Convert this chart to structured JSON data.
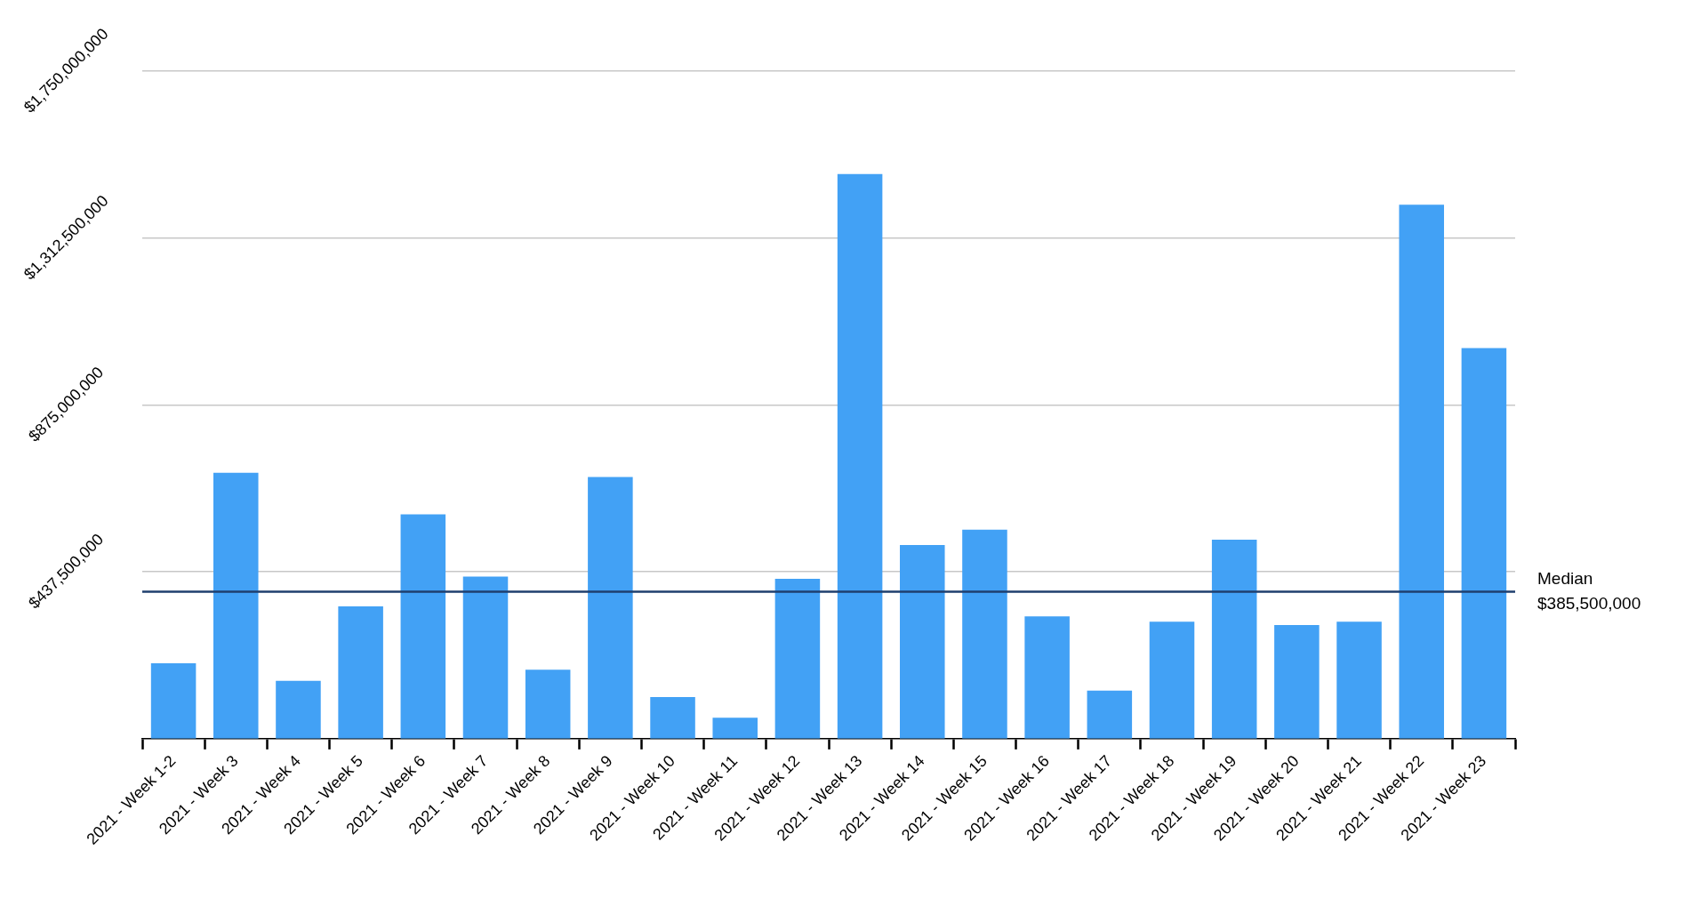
{
  "chart_data": {
    "type": "bar",
    "categories": [
      "2021 - Week 1-2",
      "2021 - Week 3",
      "2021 - Week 4",
      "2021 - Week 5",
      "2021 - Week 6",
      "2021 - Week 7",
      "2021 - Week 8",
      "2021 - Week 9",
      "2021 - Week 10",
      "2021 - Week 11",
      "2021 - Week 12",
      "2021 - Week 13",
      "2021 - Week 14",
      "2021 - Week 15",
      "2021 - Week 16",
      "2021 - Week 17",
      "2021 - Week 18",
      "2021 - Week 19",
      "2021 - Week 20",
      "2021 - Week 21",
      "2021 - Week 22",
      "2021 - Week 23"
    ],
    "values": [
      198000000,
      697000000,
      152000000,
      347000000,
      588000000,
      425000000,
      181000000,
      686000000,
      109000000,
      55000000,
      419000000,
      1480000000,
      508000000,
      548000000,
      321000000,
      126000000,
      307000000,
      522000000,
      298000000,
      307000000,
      1400000000,
      1024000000
    ],
    "color": "#42a1f5",
    "ylim": [
      0,
      1750000000
    ],
    "yticks": [
      {
        "value": 437500000,
        "label": "$437,500,000"
      },
      {
        "value": 875000000,
        "label": "$875,000,000"
      },
      {
        "value": 1312500000,
        "label": "$1,312,500,000"
      },
      {
        "value": 1750000000,
        "label": "$1,750,000,000"
      }
    ],
    "grid": "y",
    "ref_lines": [
      {
        "axis": "y",
        "value": 385500000,
        "label": "Median\n$385,500,000",
        "color": "#1f3f6e",
        "line_style": "solid"
      }
    ]
  }
}
